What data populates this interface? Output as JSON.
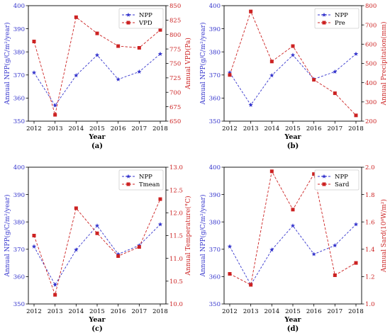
{
  "figure": {
    "years": [
      "2012",
      "2013",
      "2014",
      "2015",
      "2016",
      "2017",
      "2018"
    ]
  },
  "colors": {
    "npp": "#3333cc",
    "other": "#cc2222",
    "axis": "#000000"
  },
  "chart_data": [
    {
      "panel": "(a)",
      "type": "line",
      "xlabel": "Year",
      "x": [
        2012,
        2013,
        2014,
        2015,
        2016,
        2017,
        2018
      ],
      "ylabel_left": "Annual NPP(g/C/m²/year)",
      "ylim_left": [
        350,
        400
      ],
      "yticks_left": [
        350,
        360,
        370,
        380,
        390,
        400
      ],
      "ylabel_right": "Annual VPD(Pa)",
      "ylim_right": [
        650,
        850
      ],
      "yticks_right": [
        650,
        675,
        700,
        725,
        750,
        775,
        800,
        825,
        850
      ],
      "legend_position": "top-right",
      "series": [
        {
          "name": "NPP",
          "axis": "left",
          "marker": "star",
          "values": [
            371.0,
            356.8,
            369.8,
            378.6,
            368.1,
            371.4,
            379.1
          ]
        },
        {
          "name": "VPD",
          "axis": "right",
          "marker": "square",
          "values": [
            788,
            661,
            830,
            802,
            780,
            777,
            808
          ]
        }
      ]
    },
    {
      "panel": "(b)",
      "type": "line",
      "xlabel": "Year",
      "x": [
        2012,
        2013,
        2014,
        2015,
        2016,
        2017,
        2018
      ],
      "ylabel_left": "Annual NPP(g/C/m²/year)",
      "ylim_left": [
        350,
        400
      ],
      "yticks_left": [
        350,
        360,
        370,
        380,
        390,
        400
      ],
      "ylabel_right": "Annual Precipitation(mm)",
      "ylim_right": [
        200,
        800
      ],
      "yticks_right": [
        200,
        300,
        400,
        500,
        600,
        700,
        800
      ],
      "legend_position": "top-right",
      "series": [
        {
          "name": "NPP",
          "axis": "left",
          "marker": "star",
          "values": [
            371.0,
            357.0,
            369.8,
            378.6,
            368.2,
            371.4,
            379.1
          ]
        },
        {
          "name": "Pre",
          "axis": "right",
          "marker": "square",
          "values": [
            440,
            770,
            510,
            590,
            415,
            345,
            230
          ]
        }
      ]
    },
    {
      "panel": "(c)",
      "type": "line",
      "xlabel": "Year",
      "x": [
        2012,
        2013,
        2014,
        2015,
        2016,
        2017,
        2018
      ],
      "ylabel_left": "Annual NPP(g/C/m²/year)",
      "ylim_left": [
        350,
        400
      ],
      "yticks_left": [
        350,
        360,
        370,
        380,
        390,
        400
      ],
      "ylabel_right": "Annual Temperature(°C)",
      "ylim_right": [
        10.0,
        13.0
      ],
      "yticks_right": [
        "10.0",
        "10.5",
        "11.0",
        "11.5",
        "12.0",
        "12.5",
        "13.0"
      ],
      "legend_position": "top-right",
      "series": [
        {
          "name": "NPP",
          "axis": "left",
          "marker": "star",
          "values": [
            371.0,
            357.0,
            369.8,
            378.6,
            368.2,
            371.4,
            379.1
          ]
        },
        {
          "name": "Tmean",
          "axis": "right",
          "marker": "square",
          "values": [
            11.5,
            10.2,
            12.1,
            11.55,
            11.05,
            11.25,
            12.3
          ]
        }
      ]
    },
    {
      "panel": "(d)",
      "type": "line",
      "xlabel": "Year",
      "x": [
        2012,
        2013,
        2014,
        2015,
        2016,
        2017,
        2018
      ],
      "ylabel_left": "Annual NPP(g/C/m²/year)",
      "ylim_left": [
        350,
        400
      ],
      "yticks_left": [
        350,
        360,
        370,
        380,
        390,
        400
      ],
      "ylabel_right": "Annual Sard(10⁸W/m²)",
      "ylim_right": [
        1.0,
        2.0
      ],
      "yticks_right": [
        "1.0",
        "1.2",
        "1.4",
        "1.6",
        "1.8",
        "2.0"
      ],
      "legend_position": "top-right",
      "series": [
        {
          "name": "NPP",
          "axis": "left",
          "marker": "star",
          "values": [
            371.0,
            357.0,
            369.8,
            378.6,
            368.2,
            371.4,
            379.1
          ]
        },
        {
          "name": "Sard",
          "axis": "right",
          "marker": "square",
          "values": [
            1.22,
            1.14,
            1.97,
            1.69,
            1.95,
            1.21,
            1.3
          ]
        }
      ]
    }
  ]
}
